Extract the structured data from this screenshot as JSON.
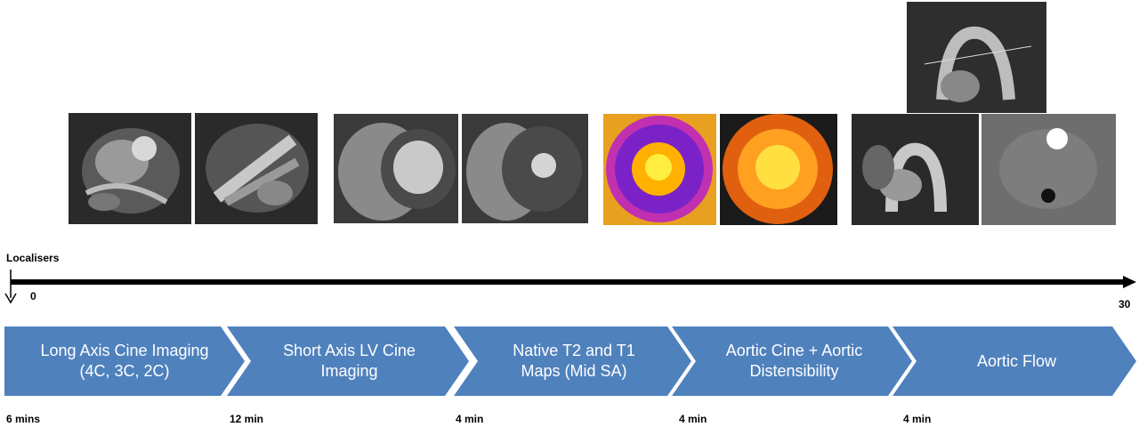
{
  "timeline": {
    "start_label": "Localisers",
    "start_value": "0",
    "end_value": "30"
  },
  "steps": [
    {
      "label": "Long Axis Cine Imaging (4C, 3C, 2C)",
      "duration": "6 mins"
    },
    {
      "label": "Short Axis LV Cine Imaging",
      "duration": "12 min"
    },
    {
      "label": "Native T2 and T1 Maps (Mid SA)",
      "duration": "4 min"
    },
    {
      "label": "Aortic Cine + Aortic Distensibility",
      "duration": "4 min"
    },
    {
      "label": "Aortic Flow",
      "duration": "4 min"
    }
  ],
  "colors": {
    "chevron_fill": "#4f81bd",
    "chevron_text": "#ffffff",
    "timeline": "#000000"
  }
}
